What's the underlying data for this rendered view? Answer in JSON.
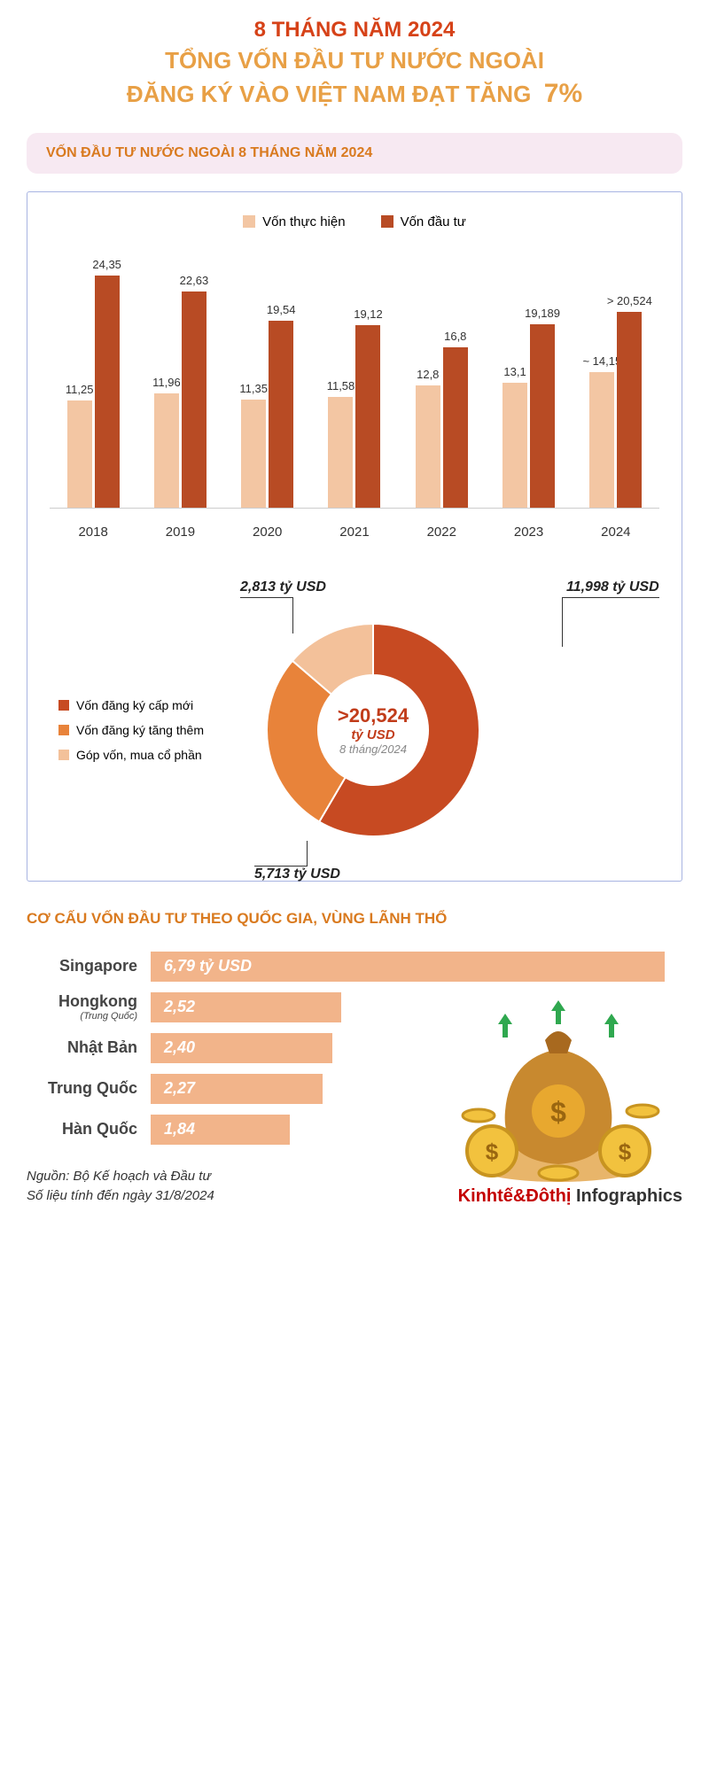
{
  "headline": {
    "line1": "8 THÁNG NĂM 2024",
    "line2": "TỔNG VỐN ĐẦU TƯ NƯỚC NGOÀI",
    "line3_a": "ĐĂNG KÝ VÀO VIỆT NAM ĐẠT TĂNG",
    "pct": "7%"
  },
  "section1_title": "VỐN ĐẦU TƯ NƯỚC NGOÀI 8 THÁNG NĂM 2024",
  "bar_chart": {
    "legend": [
      {
        "label": "Vốn thực hiện",
        "color": "#f3c6a3"
      },
      {
        "label": "Vốn đầu tư",
        "color": "#b84b24"
      }
    ],
    "ymax": 26,
    "years": [
      "2018",
      "2019",
      "2020",
      "2021",
      "2022",
      "2023",
      "2024"
    ],
    "series": [
      {
        "color": "#f3c6a3",
        "values": [
          11.25,
          11.96,
          11.35,
          11.58,
          12.8,
          13.1,
          14.15
        ],
        "labels": [
          "11,25",
          "11,96",
          "11,35",
          "11,58",
          "12,8",
          "13,1",
          "~ 14,15"
        ]
      },
      {
        "color": "#b84b24",
        "values": [
          24.35,
          22.63,
          19.54,
          19.12,
          16.8,
          19.189,
          20.524
        ],
        "labels": [
          "24,35",
          "22,63",
          "19,54",
          "19,12",
          "16,8",
          "19,189",
          "> 20,524"
        ]
      }
    ]
  },
  "donut": {
    "center_value": ">20,524",
    "center_unit": "tỷ USD",
    "center_sub": "8 tháng/2024",
    "slices": [
      {
        "label": "Vốn đăng ký cấp mới",
        "value": 11.998,
        "value_label": "11,998 tỷ USD",
        "color": "#c74a22"
      },
      {
        "label": "Vốn đăng ký tăng thêm",
        "value": 5.713,
        "value_label": "5,713 tỷ USD",
        "color": "#e8833a"
      },
      {
        "label": "Góp vốn, mua cổ phần",
        "value": 2.813,
        "value_label": "2,813 tỷ USD",
        "color": "#f3c19a"
      }
    ],
    "total": 20.524
  },
  "section2_title": "CƠ CẤU VỐN ĐẦU TƯ THEO QUỐC GIA, VÙNG LÃNH THỔ",
  "countries": {
    "max": 6.79,
    "bar_color": "#f2b48a",
    "items": [
      {
        "name": "Singapore",
        "sub": "",
        "value": 6.79,
        "label": "6,79 tỷ USD"
      },
      {
        "name": "Hongkong",
        "sub": "(Trung Quốc)",
        "value": 2.52,
        "label": "2,52"
      },
      {
        "name": "Nhật Bản",
        "sub": "",
        "value": 2.4,
        "label": "2,40"
      },
      {
        "name": "Trung Quốc",
        "sub": "",
        "value": 2.27,
        "label": "2,27"
      },
      {
        "name": "Hàn Quốc",
        "sub": "",
        "value": 1.84,
        "label": "1,84"
      }
    ]
  },
  "footer": {
    "source_line1": "Nguồn: Bộ Kế hoạch và Đầu tư",
    "source_line2": "Số liệu tính đến ngày 31/8/2024",
    "brand_a": "Kinhtế&Đôthị",
    "brand_b": "Infographics"
  },
  "colors": {
    "bg": "#ffffff",
    "card_border": "#a8b4e2",
    "title_pill_bg": "#f7e9f2",
    "accent_orange": "#d97a1f",
    "accent_red": "#d64218"
  }
}
